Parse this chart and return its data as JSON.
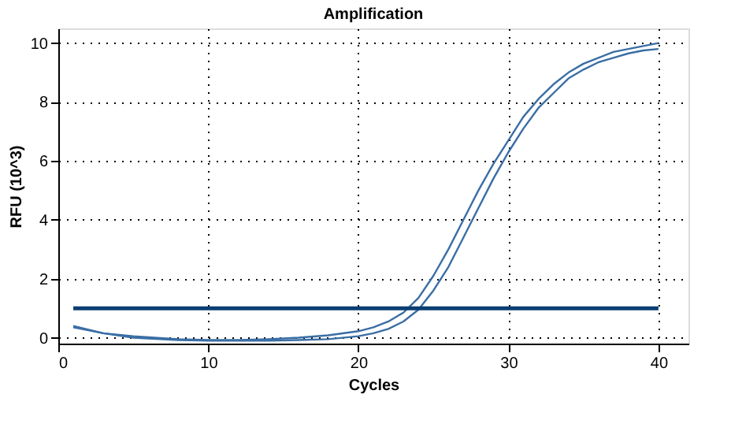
{
  "chart_data": {
    "type": "line",
    "title": "Amplification",
    "xlabel": "Cycles",
    "ylabel": "RFU (10^3)",
    "x": [
      1,
      3,
      5,
      8,
      10,
      12,
      14,
      16,
      18,
      20,
      21,
      22,
      23,
      24,
      25,
      26,
      27,
      28,
      29,
      30,
      31,
      32,
      33,
      34,
      35,
      36,
      37,
      38,
      39,
      40
    ],
    "series": [
      {
        "color": "#3a6ea5",
        "values": [
          0.35,
          0.15,
          0.05,
          -0.05,
          -0.08,
          -0.08,
          -0.05,
          0.0,
          0.08,
          0.22,
          0.35,
          0.55,
          0.85,
          1.35,
          2.1,
          3.0,
          4.0,
          5.0,
          5.9,
          6.7,
          7.5,
          8.1,
          8.6,
          9.0,
          9.3,
          9.5,
          9.7,
          9.8,
          9.9,
          10.0
        ]
      },
      {
        "color": "#3a6ea5",
        "values": [
          0.4,
          0.15,
          0.0,
          -0.08,
          -0.1,
          -0.1,
          -0.1,
          -0.08,
          -0.05,
          0.05,
          0.15,
          0.3,
          0.55,
          0.95,
          1.6,
          2.4,
          3.4,
          4.4,
          5.4,
          6.3,
          7.1,
          7.8,
          8.3,
          8.8,
          9.1,
          9.35,
          9.5,
          9.65,
          9.75,
          9.8
        ]
      }
    ],
    "ref_lines": [
      {
        "axis": "y",
        "value": 1.0,
        "color": "#0b3e73"
      }
    ],
    "xlim": [
      0,
      42
    ],
    "xticks": [
      0,
      10,
      20,
      30,
      40
    ],
    "ylim": [
      -0.2,
      10.5
    ],
    "yticks": [
      0,
      2,
      4,
      6,
      8,
      10
    ],
    "grid": true,
    "line_style": "solid",
    "marker": "none"
  }
}
